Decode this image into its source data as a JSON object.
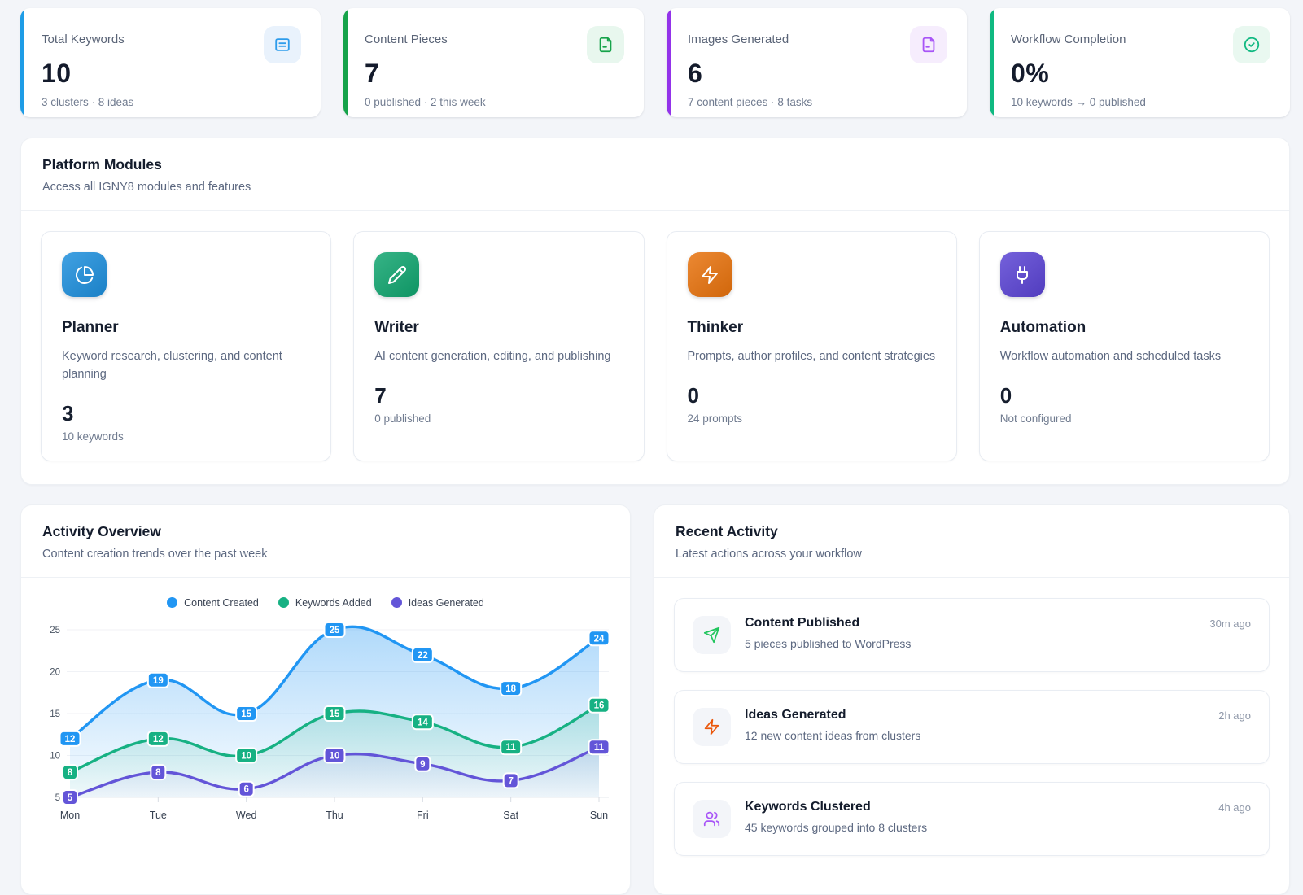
{
  "stats": [
    {
      "label": "Total Keywords",
      "value": "10",
      "sub": "3 clusters · 8 ideas",
      "accent": "#1e9ce6",
      "icon": "list-square-icon",
      "icon_color": "#2e9ceb",
      "icon_bg": "#e9f2fc"
    },
    {
      "label": "Content Pieces",
      "value": "7",
      "sub": "0 published · 2 this week",
      "accent": "#16a34a",
      "icon": "document-icon",
      "icon_color": "#16a34a",
      "icon_bg": "#e8f7ee"
    },
    {
      "label": "Images Generated",
      "value": "6",
      "sub": "7 content pieces · 8 tasks",
      "accent": "#9333ea",
      "icon": "image-file-icon",
      "icon_color": "#a855f7",
      "icon_bg": "#f6edfd"
    },
    {
      "label": "Workflow Completion",
      "value": "0%",
      "sub": "10 keywords → 0 published",
      "accent": "#10b981",
      "icon": "check-circle-icon",
      "icon_color": "#10b981",
      "icon_bg": "#e9f8f0"
    }
  ],
  "modules": {
    "title": "Platform Modules",
    "subtitle": "Access all IGNY8 modules and features",
    "items": [
      {
        "name": "Planner",
        "description": "Keyword research, clustering, and content planning",
        "value": "3",
        "sub": "10 keywords",
        "color": "#1d8fdd",
        "icon": "pie-chart-icon"
      },
      {
        "name": "Writer",
        "description": "AI content generation, editing, and publishing",
        "value": "7",
        "sub": "0 published",
        "color": "#10a56f",
        "icon": "pencil-icon"
      },
      {
        "name": "Thinker",
        "description": "Prompts, author profiles, and content strategies",
        "value": "0",
        "sub": "24 prompts",
        "color": "#e8720c",
        "icon": "lightning-icon"
      },
      {
        "name": "Automation",
        "description": "Workflow automation and scheduled tasks",
        "value": "0",
        "sub": "Not configured",
        "color": "#5a43d4",
        "icon": "plug-icon"
      }
    ]
  },
  "activity_overview": {
    "title": "Activity Overview",
    "subtitle": "Content creation trends over the past week"
  },
  "chart_data": {
    "type": "line",
    "x": [
      "Mon",
      "Tue",
      "Wed",
      "Thu",
      "Fri",
      "Sat",
      "Sun"
    ],
    "series": [
      {
        "name": "Content Created",
        "color": "#2196f3",
        "values": [
          12,
          19,
          15,
          25,
          22,
          18,
          24
        ]
      },
      {
        "name": "Keywords Added",
        "color": "#17b183",
        "values": [
          8,
          12,
          10,
          15,
          14,
          11,
          16
        ]
      },
      {
        "name": "Ideas Generated",
        "color": "#6355d8",
        "values": [
          5,
          8,
          6,
          10,
          9,
          7,
          11
        ]
      }
    ],
    "y_ticks": [
      5,
      10,
      15,
      20,
      25
    ],
    "ylim": [
      5,
      25
    ],
    "legend_position": "top",
    "grid": true,
    "area_fill": true,
    "point_labels": true
  },
  "recent_activity": {
    "title": "Recent Activity",
    "subtitle": "Latest actions across your workflow",
    "items": [
      {
        "title": "Content Published",
        "description": "5 pieces published to WordPress",
        "time": "30m ago",
        "icon": "send-icon",
        "icon_color": "#22c55e",
        "icon_bg": "#f3f5f9"
      },
      {
        "title": "Ideas Generated",
        "description": "12 new content ideas from clusters",
        "time": "2h ago",
        "icon": "zap-icon",
        "icon_color": "#ea580c",
        "icon_bg": "#f3f5f9"
      },
      {
        "title": "Keywords Clustered",
        "description": "45 keywords grouped into 8 clusters",
        "time": "4h ago",
        "icon": "users-icon",
        "icon_color": "#a855f7",
        "icon_bg": "#f3f5f9"
      }
    ]
  }
}
